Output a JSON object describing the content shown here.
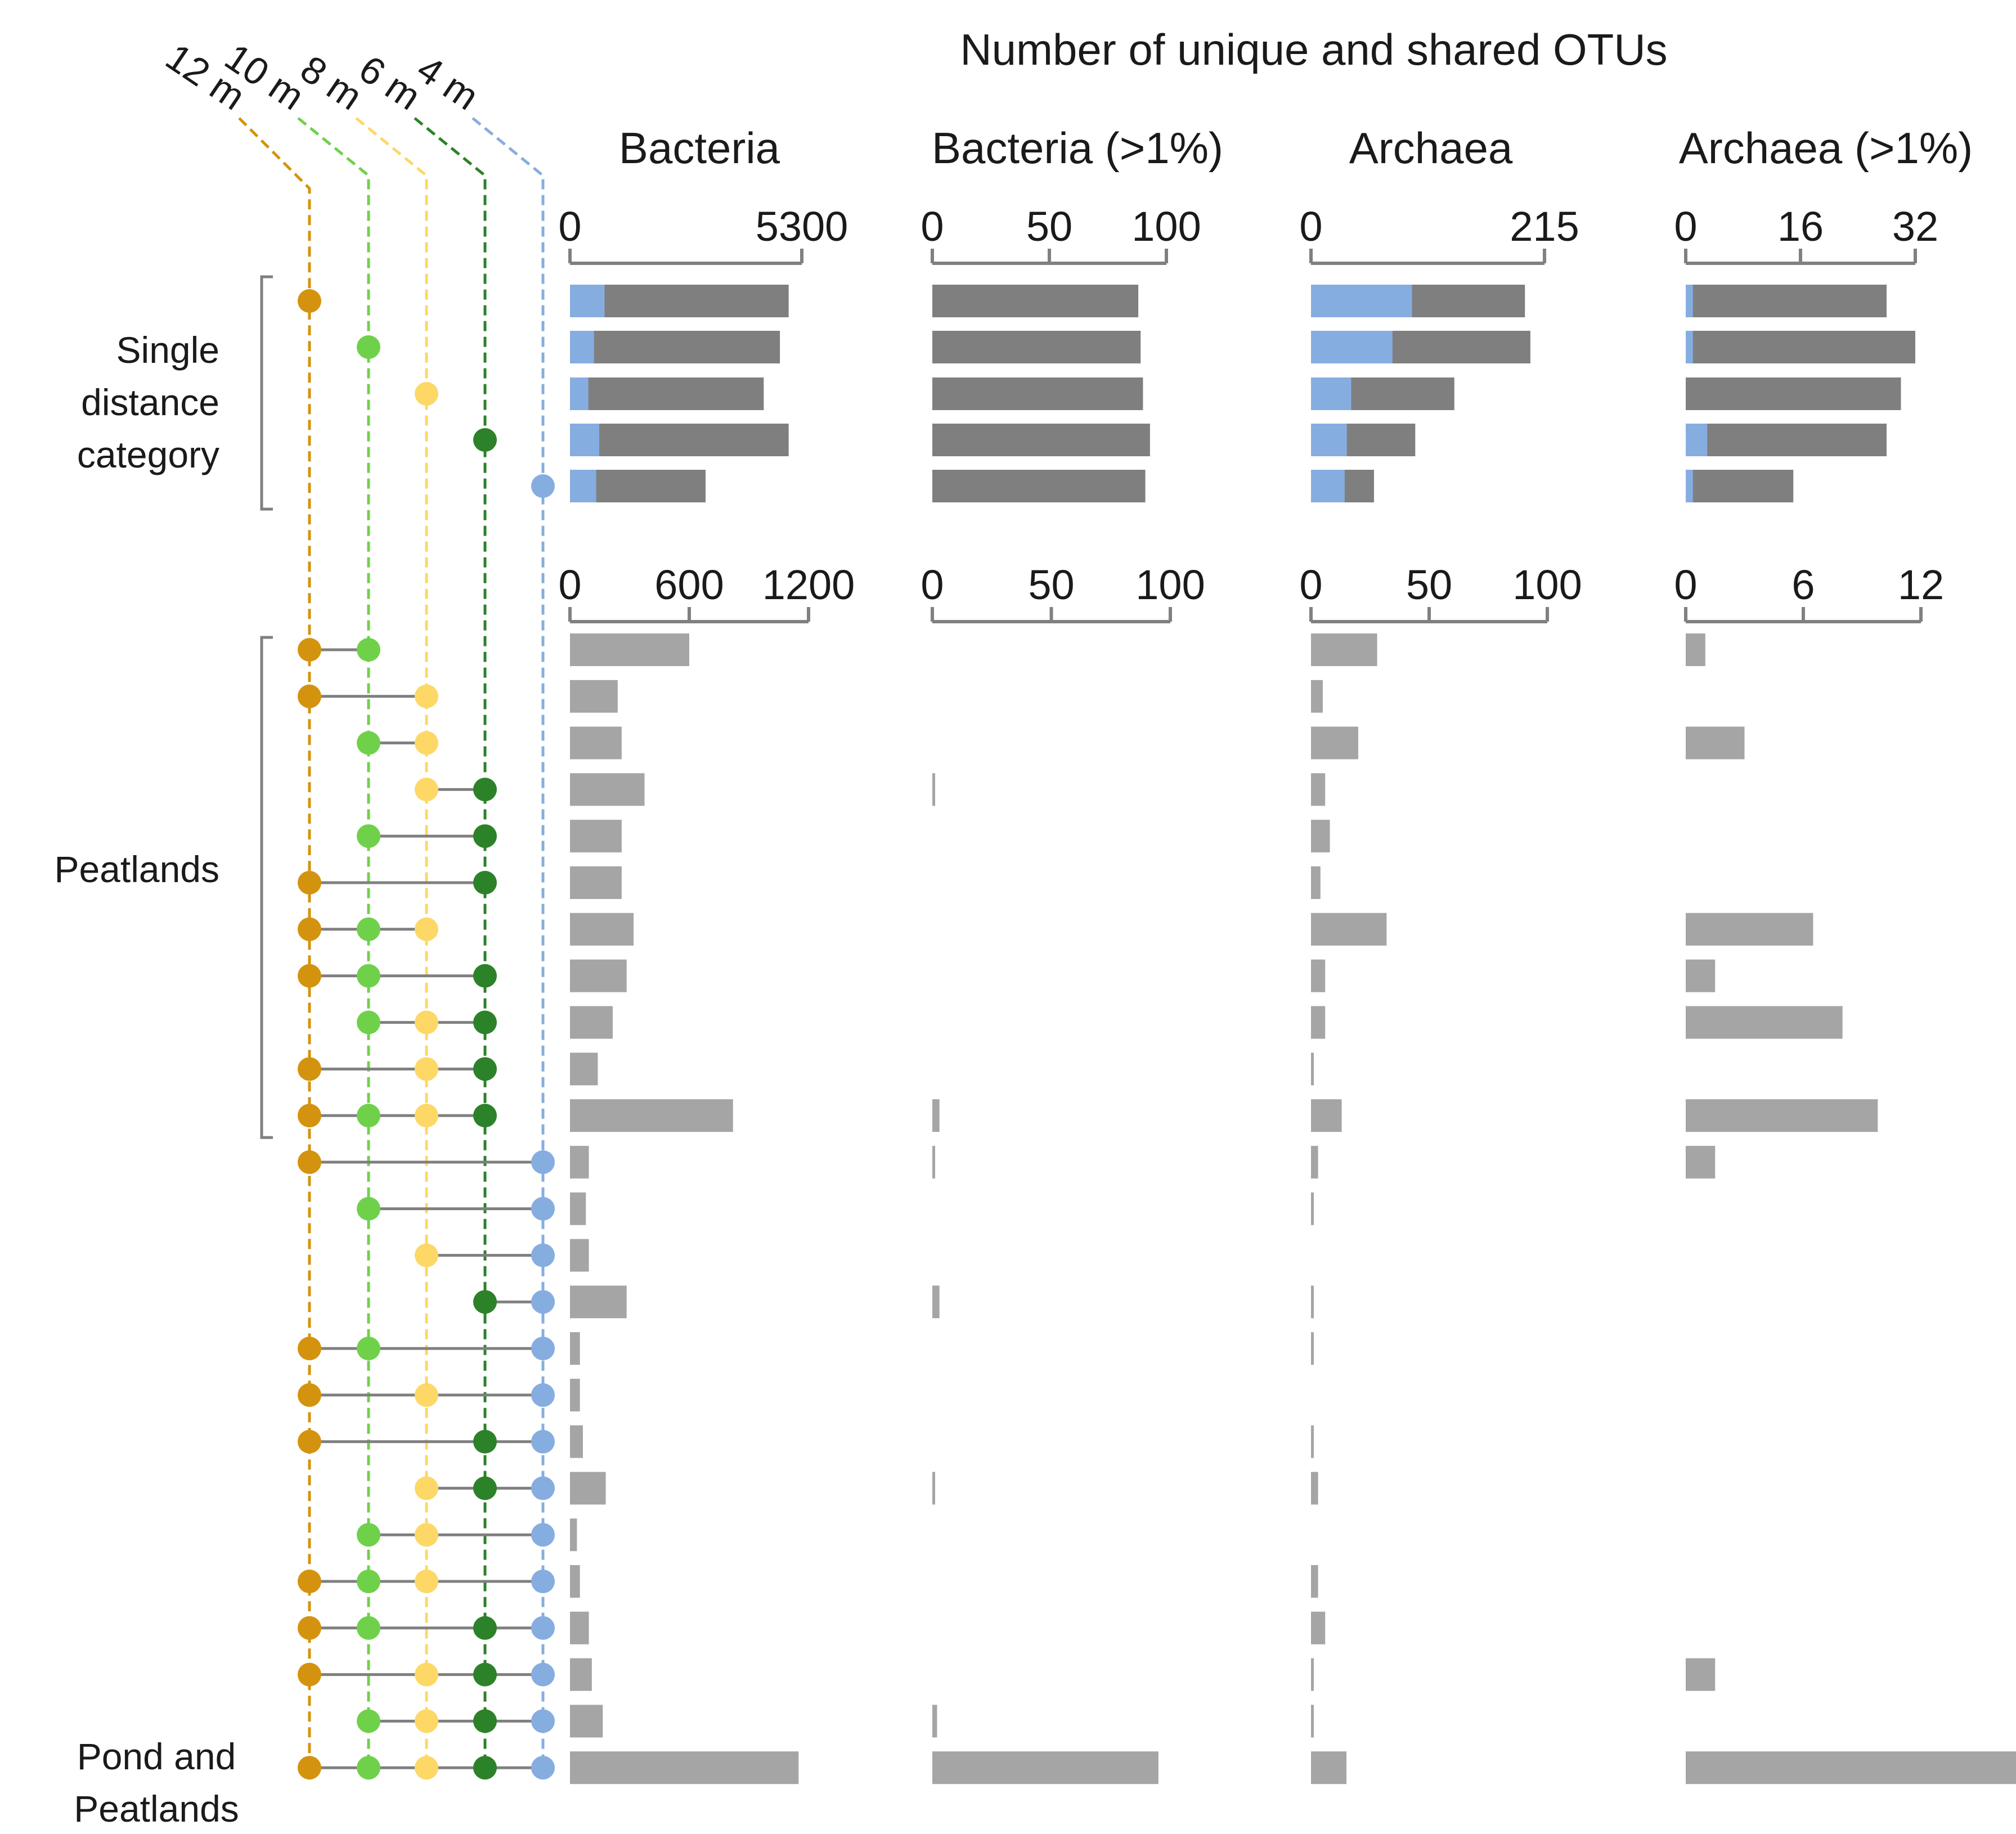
{
  "chart_data": {
    "type": "bar",
    "title": "Number of unique and shared OTUs",
    "distances": [
      {
        "label": "12 m",
        "color": "#D4930E"
      },
      {
        "label": "10 m",
        "color": "#6FD14A"
      },
      {
        "label": "8 m",
        "color": "#FDD866"
      },
      {
        "label": "6 m",
        "color": "#2C8228"
      },
      {
        "label": "4 m",
        "color": "#86ADE0"
      }
    ],
    "colors": {
      "unique_total": "#7F7F7F",
      "unique_highlight": "#86ADE0",
      "shared": "#A5A5A5",
      "connector": "#7F7F7F",
      "bracket": "#7F7F7F",
      "axis": "#808080"
    },
    "groups": [
      {
        "label": "Single\ndistance\ncategory"
      },
      {
        "label": "Peatlands"
      },
      {
        "label": "Pond and\nPeatlands"
      }
    ],
    "panels": [
      {
        "title": "Bacteria",
        "unique_axis": {
          "ticks": [
            "0",
            "5300"
          ],
          "max": 5300
        },
        "shared_axis": {
          "ticks": [
            "0",
            "600",
            "1200"
          ],
          "max": 1200
        }
      },
      {
        "title": "Bacteria (>1%)",
        "unique_axis": {
          "ticks": [
            "0",
            "50",
            "100"
          ],
          "max": 100
        },
        "shared_axis": {
          "ticks": [
            "0",
            "50",
            "100"
          ],
          "max": 100
        }
      },
      {
        "title": "Archaea",
        "unique_axis": {
          "ticks": [
            "0",
            "215"
          ],
          "max": 215
        },
        "shared_axis": {
          "ticks": [
            "0",
            "50",
            "100"
          ],
          "max": 100
        }
      },
      {
        "title": "Archaea (>1%)",
        "unique_axis": {
          "ticks": [
            "0",
            "16",
            "32"
          ],
          "max": 32
        },
        "shared_axis": {
          "ticks": [
            "0",
            "6",
            "12"
          ],
          "max": 12
        }
      }
    ],
    "unique_rows": [
      {
        "distance": "12 m",
        "values": [
          [
            5000,
            790
          ],
          [
            88,
            0
          ],
          [
            197,
            93
          ],
          [
            28,
            1
          ]
        ]
      },
      {
        "distance": "10 m",
        "values": [
          [
            4800,
            550
          ],
          [
            89,
            0
          ],
          [
            202,
            75
          ],
          [
            32,
            1
          ]
        ]
      },
      {
        "distance": "8 m",
        "values": [
          [
            4430,
            420
          ],
          [
            90,
            0
          ],
          [
            132,
            37
          ],
          [
            30,
            0
          ]
        ]
      },
      {
        "distance": "6 m",
        "values": [
          [
            5000,
            670
          ],
          [
            93,
            0
          ],
          [
            96,
            33
          ],
          [
            28,
            3
          ]
        ]
      },
      {
        "distance": "4 m",
        "values": [
          [
            3100,
            600
          ],
          [
            91,
            0
          ],
          [
            58,
            31
          ],
          [
            15,
            1
          ]
        ]
      }
    ],
    "shared_rows": [
      {
        "members": [
          0,
          1
        ],
        "values": [
          600,
          0,
          28,
          1
        ]
      },
      {
        "members": [
          0,
          2
        ],
        "values": [
          240,
          0,
          5,
          0
        ]
      },
      {
        "members": [
          1,
          2
        ],
        "values": [
          260,
          0,
          20,
          3
        ]
      },
      {
        "members": [
          2,
          3
        ],
        "values": [
          375,
          1,
          6,
          0
        ]
      },
      {
        "members": [
          1,
          3
        ],
        "values": [
          260,
          0,
          8,
          0
        ]
      },
      {
        "members": [
          0,
          3
        ],
        "values": [
          260,
          0,
          4,
          0
        ]
      },
      {
        "members": [
          0,
          1,
          2
        ],
        "values": [
          320,
          0,
          32,
          6.5
        ]
      },
      {
        "members": [
          0,
          1,
          3
        ],
        "values": [
          285,
          0,
          6,
          1.5
        ]
      },
      {
        "members": [
          1,
          2,
          3
        ],
        "values": [
          215,
          0,
          6,
          8
        ]
      },
      {
        "members": [
          0,
          2,
          3
        ],
        "values": [
          140,
          0,
          1,
          0
        ]
      },
      {
        "members": [
          0,
          1,
          2,
          3
        ],
        "values": [
          820,
          3,
          13,
          9.8
        ]
      },
      {
        "members": [
          0,
          4
        ],
        "values": [
          95,
          1,
          3,
          1.5
        ]
      },
      {
        "members": [
          1,
          4
        ],
        "values": [
          80,
          0,
          1,
          0
        ]
      },
      {
        "members": [
          2,
          4
        ],
        "values": [
          95,
          0,
          0,
          0
        ]
      },
      {
        "members": [
          3,
          4
        ],
        "values": [
          285,
          3,
          1,
          0
        ]
      },
      {
        "members": [
          0,
          1,
          4
        ],
        "values": [
          50,
          0,
          1,
          0
        ]
      },
      {
        "members": [
          0,
          2,
          4
        ],
        "values": [
          50,
          0,
          0,
          0
        ]
      },
      {
        "members": [
          0,
          3,
          4
        ],
        "values": [
          65,
          0,
          1,
          0
        ]
      },
      {
        "members": [
          2,
          3,
          4
        ],
        "values": [
          180,
          1,
          3,
          0
        ]
      },
      {
        "members": [
          1,
          2,
          4
        ],
        "values": [
          35,
          0,
          0,
          0
        ]
      },
      {
        "members": [
          0,
          1,
          2,
          4
        ],
        "values": [
          50,
          0,
          3,
          0
        ]
      },
      {
        "members": [
          0,
          1,
          3,
          4
        ],
        "values": [
          95,
          0,
          6,
          0
        ]
      },
      {
        "members": [
          0,
          2,
          3,
          4
        ],
        "values": [
          110,
          0,
          1,
          1.5
        ]
      },
      {
        "members": [
          1,
          2,
          3,
          4
        ],
        "values": [
          165,
          2,
          1,
          0
        ]
      },
      {
        "members": [
          0,
          1,
          2,
          3,
          4
        ],
        "values": [
          1150,
          95,
          15,
          19
        ]
      }
    ]
  }
}
